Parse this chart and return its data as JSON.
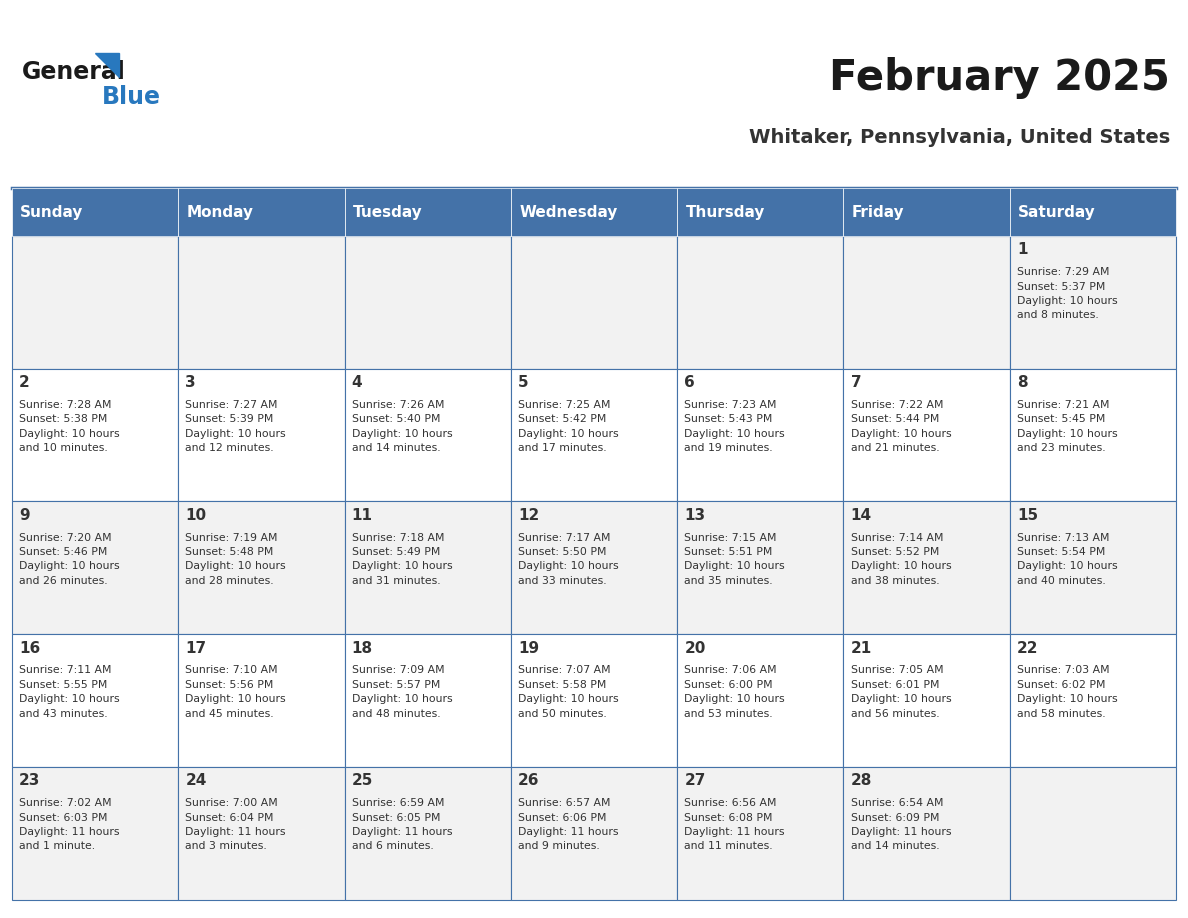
{
  "title": "February 2025",
  "subtitle": "Whitaker, Pennsylvania, United States",
  "header_bg": "#4472A8",
  "header_text_color": "#FFFFFF",
  "days_of_week": [
    "Sunday",
    "Monday",
    "Tuesday",
    "Wednesday",
    "Thursday",
    "Friday",
    "Saturday"
  ],
  "cell_bg_odd": "#F2F2F2",
  "cell_bg_even": "#FFFFFF",
  "cell_border_color": "#4472A8",
  "day_num_color": "#333333",
  "info_text_color": "#333333",
  "logo_general_color": "#1a1a1a",
  "logo_blue_color": "#2878BE",
  "weeks": [
    [
      {
        "day": null,
        "info": null
      },
      {
        "day": null,
        "info": null
      },
      {
        "day": null,
        "info": null
      },
      {
        "day": null,
        "info": null
      },
      {
        "day": null,
        "info": null
      },
      {
        "day": null,
        "info": null
      },
      {
        "day": 1,
        "info": "Sunrise: 7:29 AM\nSunset: 5:37 PM\nDaylight: 10 hours\nand 8 minutes."
      }
    ],
    [
      {
        "day": 2,
        "info": "Sunrise: 7:28 AM\nSunset: 5:38 PM\nDaylight: 10 hours\nand 10 minutes."
      },
      {
        "day": 3,
        "info": "Sunrise: 7:27 AM\nSunset: 5:39 PM\nDaylight: 10 hours\nand 12 minutes."
      },
      {
        "day": 4,
        "info": "Sunrise: 7:26 AM\nSunset: 5:40 PM\nDaylight: 10 hours\nand 14 minutes."
      },
      {
        "day": 5,
        "info": "Sunrise: 7:25 AM\nSunset: 5:42 PM\nDaylight: 10 hours\nand 17 minutes."
      },
      {
        "day": 6,
        "info": "Sunrise: 7:23 AM\nSunset: 5:43 PM\nDaylight: 10 hours\nand 19 minutes."
      },
      {
        "day": 7,
        "info": "Sunrise: 7:22 AM\nSunset: 5:44 PM\nDaylight: 10 hours\nand 21 minutes."
      },
      {
        "day": 8,
        "info": "Sunrise: 7:21 AM\nSunset: 5:45 PM\nDaylight: 10 hours\nand 23 minutes."
      }
    ],
    [
      {
        "day": 9,
        "info": "Sunrise: 7:20 AM\nSunset: 5:46 PM\nDaylight: 10 hours\nand 26 minutes."
      },
      {
        "day": 10,
        "info": "Sunrise: 7:19 AM\nSunset: 5:48 PM\nDaylight: 10 hours\nand 28 minutes."
      },
      {
        "day": 11,
        "info": "Sunrise: 7:18 AM\nSunset: 5:49 PM\nDaylight: 10 hours\nand 31 minutes."
      },
      {
        "day": 12,
        "info": "Sunrise: 7:17 AM\nSunset: 5:50 PM\nDaylight: 10 hours\nand 33 minutes."
      },
      {
        "day": 13,
        "info": "Sunrise: 7:15 AM\nSunset: 5:51 PM\nDaylight: 10 hours\nand 35 minutes."
      },
      {
        "day": 14,
        "info": "Sunrise: 7:14 AM\nSunset: 5:52 PM\nDaylight: 10 hours\nand 38 minutes."
      },
      {
        "day": 15,
        "info": "Sunrise: 7:13 AM\nSunset: 5:54 PM\nDaylight: 10 hours\nand 40 minutes."
      }
    ],
    [
      {
        "day": 16,
        "info": "Sunrise: 7:11 AM\nSunset: 5:55 PM\nDaylight: 10 hours\nand 43 minutes."
      },
      {
        "day": 17,
        "info": "Sunrise: 7:10 AM\nSunset: 5:56 PM\nDaylight: 10 hours\nand 45 minutes."
      },
      {
        "day": 18,
        "info": "Sunrise: 7:09 AM\nSunset: 5:57 PM\nDaylight: 10 hours\nand 48 minutes."
      },
      {
        "day": 19,
        "info": "Sunrise: 7:07 AM\nSunset: 5:58 PM\nDaylight: 10 hours\nand 50 minutes."
      },
      {
        "day": 20,
        "info": "Sunrise: 7:06 AM\nSunset: 6:00 PM\nDaylight: 10 hours\nand 53 minutes."
      },
      {
        "day": 21,
        "info": "Sunrise: 7:05 AM\nSunset: 6:01 PM\nDaylight: 10 hours\nand 56 minutes."
      },
      {
        "day": 22,
        "info": "Sunrise: 7:03 AM\nSunset: 6:02 PM\nDaylight: 10 hours\nand 58 minutes."
      }
    ],
    [
      {
        "day": 23,
        "info": "Sunrise: 7:02 AM\nSunset: 6:03 PM\nDaylight: 11 hours\nand 1 minute."
      },
      {
        "day": 24,
        "info": "Sunrise: 7:00 AM\nSunset: 6:04 PM\nDaylight: 11 hours\nand 3 minutes."
      },
      {
        "day": 25,
        "info": "Sunrise: 6:59 AM\nSunset: 6:05 PM\nDaylight: 11 hours\nand 6 minutes."
      },
      {
        "day": 26,
        "info": "Sunrise: 6:57 AM\nSunset: 6:06 PM\nDaylight: 11 hours\nand 9 minutes."
      },
      {
        "day": 27,
        "info": "Sunrise: 6:56 AM\nSunset: 6:08 PM\nDaylight: 11 hours\nand 11 minutes."
      },
      {
        "day": 28,
        "info": "Sunrise: 6:54 AM\nSunset: 6:09 PM\nDaylight: 11 hours\nand 14 minutes."
      },
      {
        "day": null,
        "info": null
      }
    ]
  ]
}
